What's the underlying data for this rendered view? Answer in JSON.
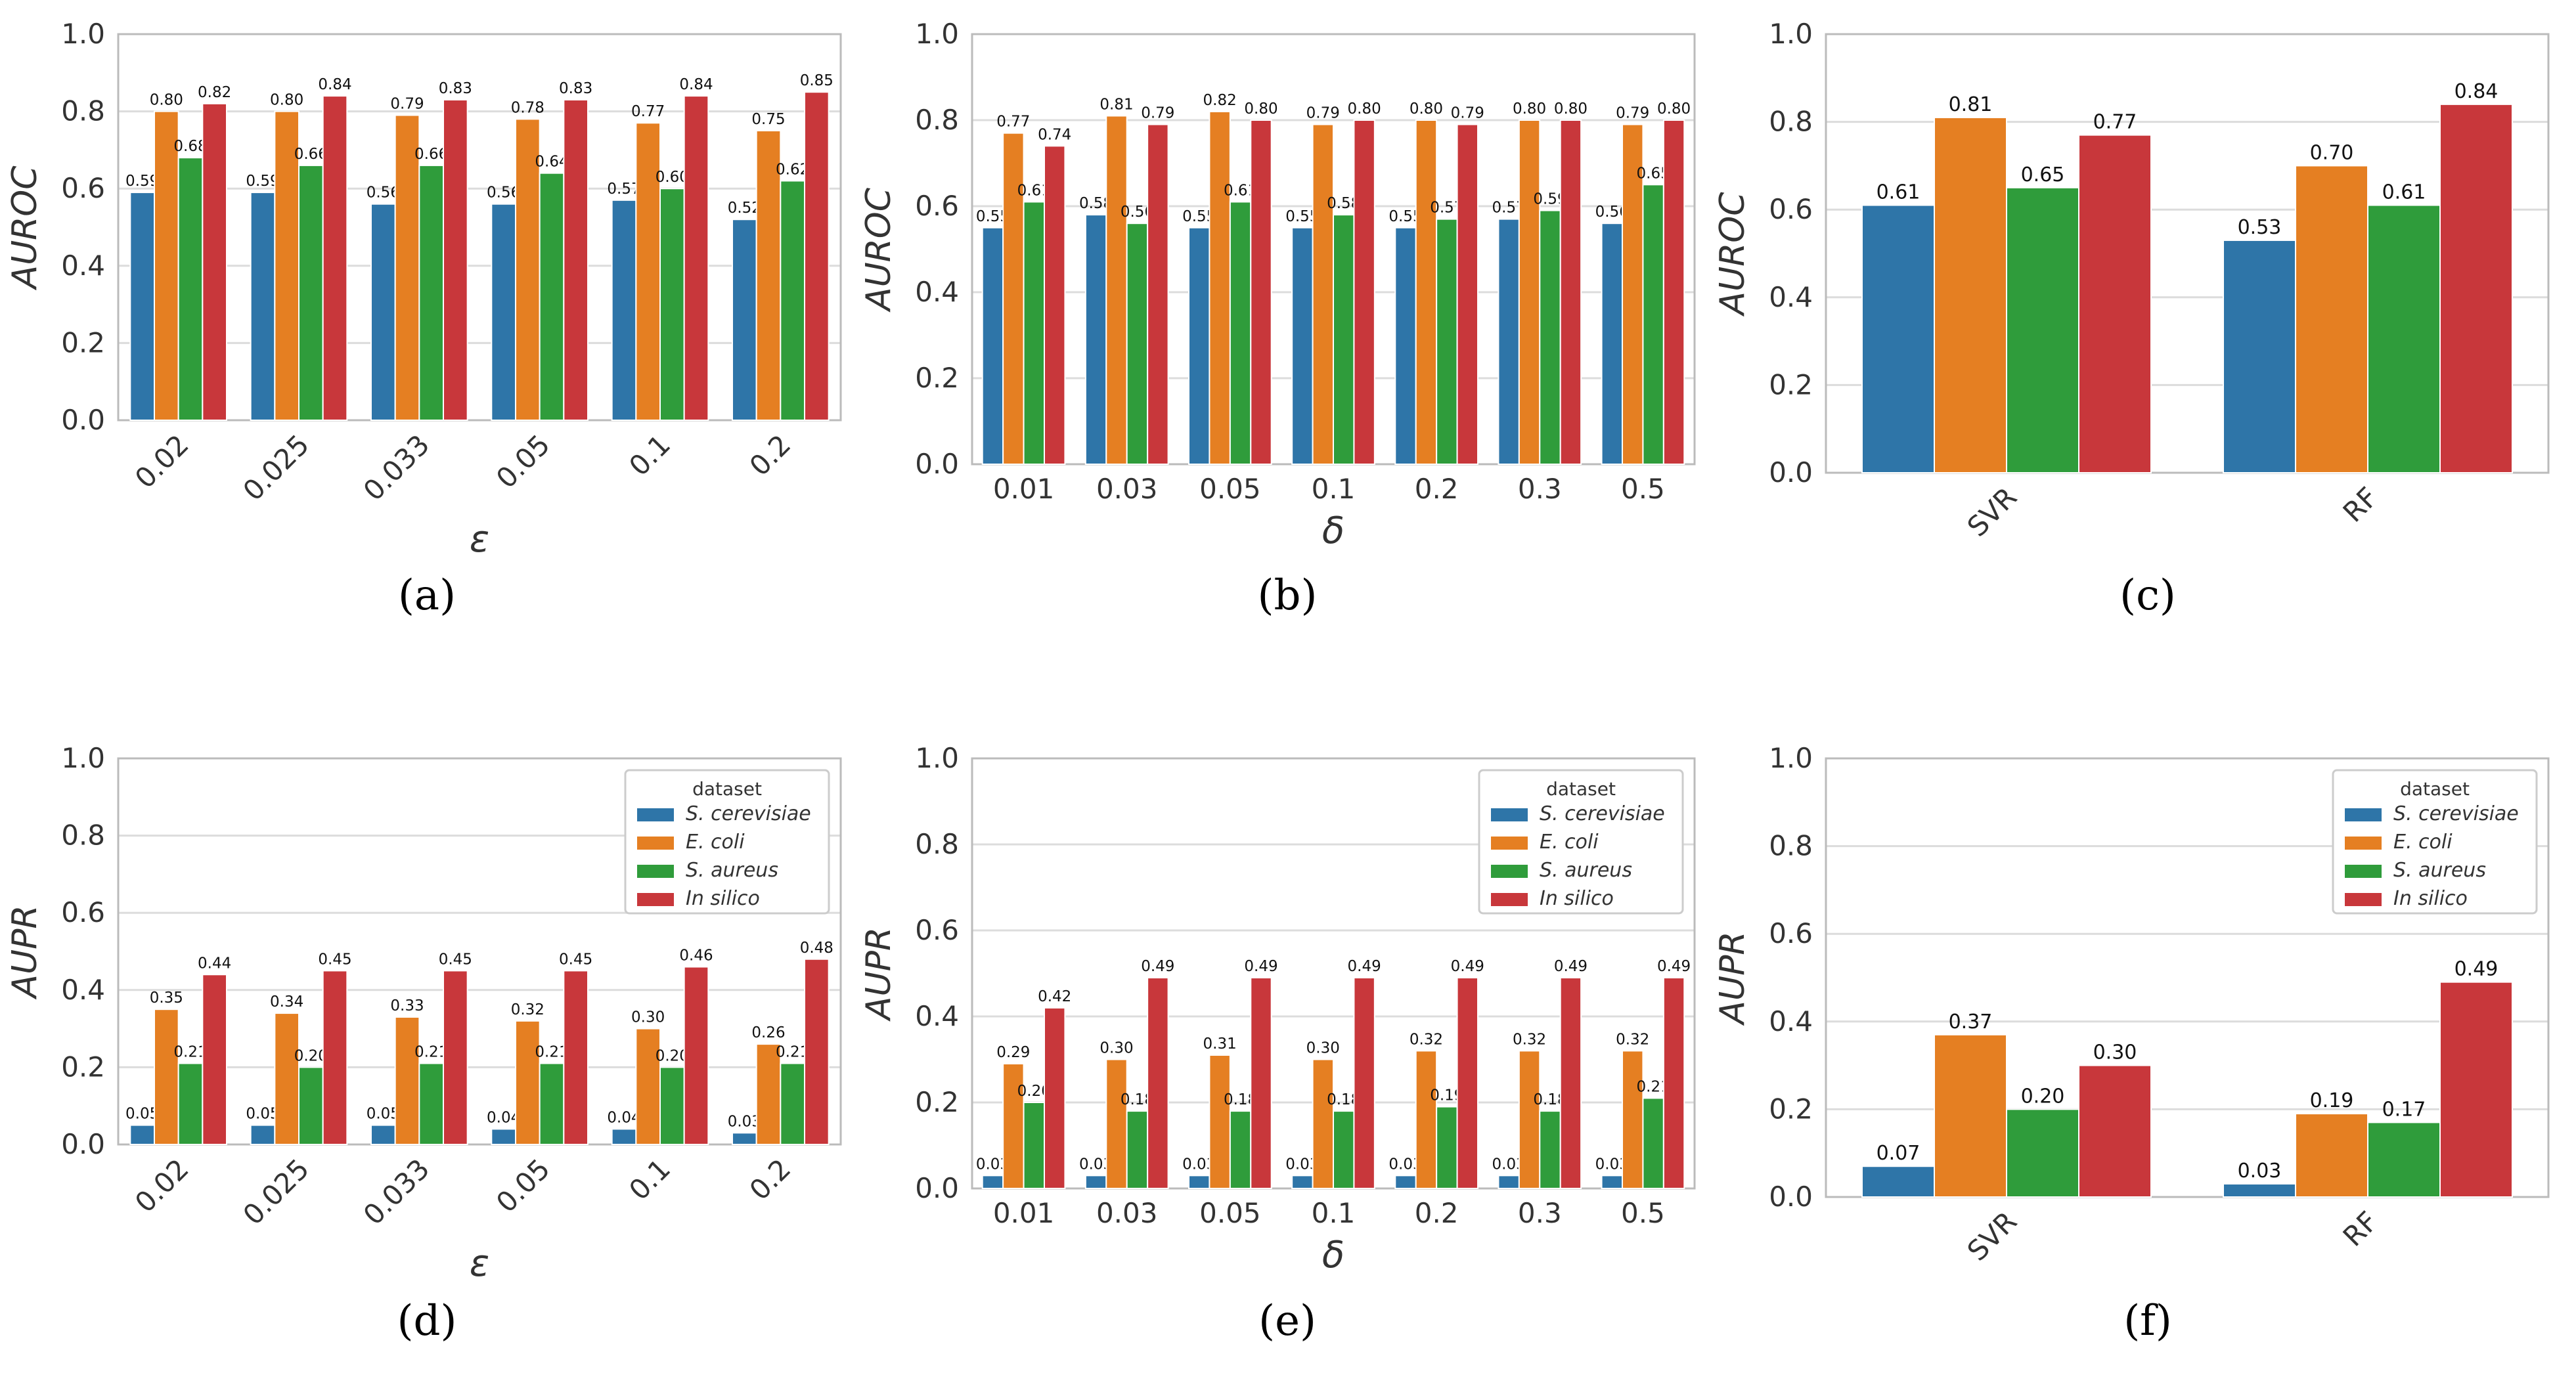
{
  "colors": {
    "S. cerevisiae": "#2e75a8",
    "E. coli": "#e57f22",
    "S. aureus": "#2f9c3b",
    "In silico": "#c8373b",
    "grid": "#dcdcdc",
    "axis": "#bbbbbb",
    "text": "#333333"
  },
  "legend": {
    "title": "dataset",
    "entries": [
      "S. cerevisiae",
      "E. coli",
      "S. aureus",
      "In silico"
    ]
  },
  "chart_data": [
    {
      "id": "a",
      "caption": "(a)",
      "type": "bar",
      "xlabel": "ε",
      "ylabel": "AUROC",
      "ylim": [
        0,
        1.0
      ],
      "yticks": [
        "0.0",
        "0.2",
        "0.4",
        "0.6",
        "0.8",
        "1.0"
      ],
      "categories": [
        "0.02",
        "0.025",
        "0.033",
        "0.05",
        "0.1",
        "0.2"
      ],
      "rotate_ticks": true,
      "legend": false,
      "grid": true,
      "series": [
        {
          "name": "S. cerevisiae",
          "values": [
            0.59,
            0.59,
            0.56,
            0.56,
            0.57,
            0.52
          ]
        },
        {
          "name": "E. coli",
          "values": [
            0.8,
            0.8,
            0.79,
            0.78,
            0.77,
            0.75
          ]
        },
        {
          "name": "S. aureus",
          "values": [
            0.68,
            0.66,
            0.66,
            0.64,
            0.6,
            0.62
          ]
        },
        {
          "name": "In silico",
          "values": [
            0.82,
            0.84,
            0.83,
            0.83,
            0.84,
            0.85
          ]
        }
      ]
    },
    {
      "id": "b",
      "caption": "(b)",
      "type": "bar",
      "xlabel": "δ",
      "ylabel": "AUROC",
      "ylim": [
        0,
        1.0
      ],
      "yticks": [
        "0.0",
        "0.2",
        "0.4",
        "0.6",
        "0.8",
        "1.0"
      ],
      "categories": [
        "0.01",
        "0.03",
        "0.05",
        "0.1",
        "0.2",
        "0.3",
        "0.5"
      ],
      "rotate_ticks": false,
      "legend": false,
      "grid": true,
      "series": [
        {
          "name": "S. cerevisiae",
          "values": [
            0.55,
            0.58,
            0.55,
            0.55,
            0.55,
            0.57,
            0.56
          ]
        },
        {
          "name": "E. coli",
          "values": [
            0.77,
            0.81,
            0.82,
            0.79,
            0.8,
            0.8,
            0.79
          ]
        },
        {
          "name": "S. aureus",
          "values": [
            0.61,
            0.56,
            0.61,
            0.58,
            0.57,
            0.59,
            0.65
          ]
        },
        {
          "name": "In silico",
          "values": [
            0.74,
            0.79,
            0.8,
            0.8,
            0.79,
            0.8,
            0.8
          ]
        }
      ]
    },
    {
      "id": "c",
      "caption": "(c)",
      "type": "bar",
      "xlabel": "",
      "ylabel": "AUROC",
      "ylim": [
        0,
        1.0
      ],
      "yticks": [
        "0.0",
        "0.2",
        "0.4",
        "0.6",
        "0.8",
        "1.0"
      ],
      "categories": [
        "SVR",
        "RF"
      ],
      "rotate_ticks": true,
      "legend": false,
      "grid": true,
      "series": [
        {
          "name": "S. cerevisiae",
          "values": [
            0.61,
            0.53
          ]
        },
        {
          "name": "E. coli",
          "values": [
            0.81,
            0.7
          ]
        },
        {
          "name": "S. aureus",
          "values": [
            0.65,
            0.61
          ]
        },
        {
          "name": "In silico",
          "values": [
            0.77,
            0.84
          ]
        }
      ]
    },
    {
      "id": "d",
      "caption": "(d)",
      "type": "bar",
      "xlabel": "ε",
      "ylabel": "AUPR",
      "ylim": [
        0,
        1.0
      ],
      "yticks": [
        "0.0",
        "0.2",
        "0.4",
        "0.6",
        "0.8",
        "1.0"
      ],
      "categories": [
        "0.02",
        "0.025",
        "0.033",
        "0.05",
        "0.1",
        "0.2"
      ],
      "rotate_ticks": true,
      "legend": true,
      "grid": true,
      "series": [
        {
          "name": "S. cerevisiae",
          "values": [
            0.05,
            0.05,
            0.05,
            0.04,
            0.04,
            0.03
          ]
        },
        {
          "name": "E. coli",
          "values": [
            0.35,
            0.34,
            0.33,
            0.32,
            0.3,
            0.26
          ]
        },
        {
          "name": "S. aureus",
          "values": [
            0.21,
            0.2,
            0.21,
            0.21,
            0.2,
            0.21
          ]
        },
        {
          "name": "In silico",
          "values": [
            0.44,
            0.45,
            0.45,
            0.45,
            0.46,
            0.48
          ]
        }
      ]
    },
    {
      "id": "e",
      "caption": "(e)",
      "type": "bar",
      "xlabel": "δ",
      "ylabel": "AUPR",
      "ylim": [
        0,
        1.0
      ],
      "yticks": [
        "0.0",
        "0.2",
        "0.4",
        "0.6",
        "0.8",
        "1.0"
      ],
      "categories": [
        "0.01",
        "0.03",
        "0.05",
        "0.1",
        "0.2",
        "0.3",
        "0.5"
      ],
      "rotate_ticks": false,
      "legend": true,
      "grid": true,
      "series": [
        {
          "name": "S. cerevisiae",
          "values": [
            0.03,
            0.03,
            0.03,
            0.03,
            0.03,
            0.03,
            0.03
          ]
        },
        {
          "name": "E. coli",
          "values": [
            0.29,
            0.3,
            0.31,
            0.3,
            0.32,
            0.32,
            0.32
          ]
        },
        {
          "name": "S. aureus",
          "values": [
            0.2,
            0.18,
            0.18,
            0.18,
            0.19,
            0.18,
            0.21
          ]
        },
        {
          "name": "In silico",
          "values": [
            0.42,
            0.49,
            0.49,
            0.49,
            0.49,
            0.49,
            0.49
          ]
        }
      ]
    },
    {
      "id": "f",
      "caption": "(f)",
      "type": "bar",
      "xlabel": "",
      "ylabel": "AUPR",
      "ylim": [
        0,
        1.0
      ],
      "yticks": [
        "0.0",
        "0.2",
        "0.4",
        "0.6",
        "0.8",
        "1.0"
      ],
      "categories": [
        "SVR",
        "RF"
      ],
      "rotate_ticks": true,
      "legend": true,
      "grid": true,
      "series": [
        {
          "name": "S. cerevisiae",
          "values": [
            0.07,
            0.03
          ]
        },
        {
          "name": "E. coli",
          "values": [
            0.37,
            0.19
          ]
        },
        {
          "name": "S. aureus",
          "values": [
            0.2,
            0.17
          ]
        },
        {
          "name": "In silico",
          "values": [
            0.3,
            0.49
          ]
        }
      ]
    }
  ]
}
